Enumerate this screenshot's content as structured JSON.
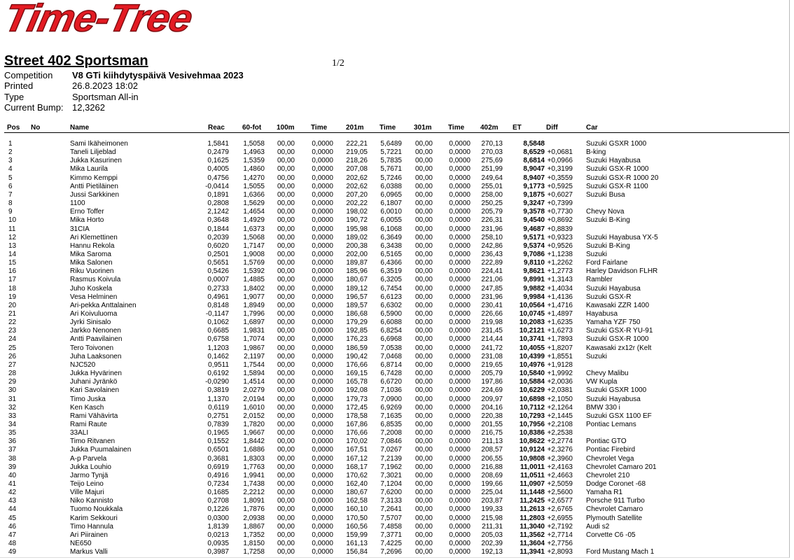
{
  "header": {
    "logo": "Time-Tree",
    "title": "Street 402 Sportsman",
    "page": "1/2",
    "info": [
      {
        "label": "Competition",
        "value": "V8   GTi kiihdytyspäivä Vesivehmaa 2023"
      },
      {
        "label": "Printed",
        "value": "26.8.2023 18:02"
      },
      {
        "label": "Type",
        "value": "Sportsman  All-in"
      },
      {
        "label": "Current Bump:",
        "value": "12,3262"
      }
    ]
  },
  "table": {
    "columns": [
      "Pos",
      "No",
      "Name",
      "Reac",
      "60-fot",
      "100m",
      "Time",
      "201m",
      "Time",
      "301m",
      "Time",
      "402m",
      "ET",
      "Diff",
      "Car"
    ],
    "rows": [
      {
        "pos": 1,
        "name": "Sami Ikäheimonen",
        "reac": "1,5841",
        "f60": "1,5058",
        "m100": "00,00",
        "t100": "0,0000",
        "m201": "222,21",
        "t201": "5,6489",
        "m301": "00,00",
        "t301": "0,0000",
        "m402": "270,13",
        "et": "8,5848",
        "car": "Suzuki GSXR 1000"
      },
      {
        "pos": 2,
        "name": "Taneli Liljeblad",
        "reac": "0,2479",
        "f60": "1,4963",
        "m100": "00,00",
        "t100": "0,0000",
        "m201": "219,05",
        "t201": "5,7221",
        "m301": "00,00",
        "t301": "0,0000",
        "m402": "270,03",
        "et": "8,6529",
        "diff": "+0,0681",
        "car": "B-king"
      },
      {
        "pos": 3,
        "name": "Jukka Kasurinen",
        "reac": "0,1625",
        "f60": "1,5359",
        "m100": "00,00",
        "t100": "0,0000",
        "m201": "218,26",
        "t201": "5,7835",
        "m301": "00,00",
        "t301": "0,0000",
        "m402": "275,69",
        "et": "8,6814",
        "diff": "+0,0966",
        "car": "Suzuki Hayabusa"
      },
      {
        "pos": 4,
        "name": "Mika Laurila",
        "reac": "0,4005",
        "f60": "1,4860",
        "m100": "00,00",
        "t100": "0,0000",
        "m201": "207,08",
        "t201": "5,7671",
        "m301": "00,00",
        "t301": "0,0000",
        "m402": "251,99",
        "et": "8,9047",
        "diff": "+0,3199",
        "car": "Suzuki GSX-R 1000"
      },
      {
        "pos": 5,
        "name": "Kimmo Kemppi",
        "reac": "0,4756",
        "f60": "1,4270",
        "m100": "00,00",
        "t100": "0,0000",
        "m201": "202,62",
        "t201": "5,7246",
        "m301": "00,00",
        "t301": "0,0000",
        "m402": "249,64",
        "et": "8,9407",
        "diff": "+0,3559",
        "car": "Suzuki GSX-R 1000 20"
      },
      {
        "pos": 6,
        "name": "Antti Pietiläinen",
        "reac": "-0,0414",
        "f60": "1,5055",
        "m100": "00,00",
        "t100": "0,0000",
        "m201": "202,62",
        "t201": "6,0388",
        "m301": "00,00",
        "t301": "0,0000",
        "m402": "255,01",
        "et": "9,1773",
        "diff": "+0,5925",
        "car": "Suzuki GSX-R 1100"
      },
      {
        "pos": 7,
        "name": "Jussi Sarkkinen",
        "reac": "0,1891",
        "f60": "1,6366",
        "m100": "00,00",
        "t100": "0,0000",
        "m201": "207,20",
        "t201": "6,0965",
        "m301": "00,00",
        "t301": "0,0000",
        "m402": "258,00",
        "et": "9,1875",
        "diff": "+0,6027",
        "car": "Suzuki Busa"
      },
      {
        "pos": 8,
        "name": "1100",
        "reac": "0,2808",
        "f60": "1,5629",
        "m100": "00,00",
        "t100": "0,0000",
        "m201": "202,22",
        "t201": "6,1807",
        "m301": "00,00",
        "t301": "0,0000",
        "m402": "250,25",
        "et": "9,3247",
        "diff": "+0,7399"
      },
      {
        "pos": 9,
        "name": "Erno Toffer",
        "reac": "2,1242",
        "f60": "1,4654",
        "m100": "00,00",
        "t100": "0,0000",
        "m201": "198,02",
        "t201": "6,0010",
        "m301": "00,00",
        "t301": "0,0000",
        "m402": "205,79",
        "et": "9,3578",
        "diff": "+0,7730",
        "car": "Chevy Nova"
      },
      {
        "pos": 10,
        "name": "Mika Horto",
        "reac": "0,3648",
        "f60": "1,4929",
        "m100": "00,00",
        "t100": "0,0000",
        "m201": "190,72",
        "t201": "6,0055",
        "m301": "00,00",
        "t301": "0,0000",
        "m402": "226,31",
        "et": "9,4540",
        "diff": "+0,8692",
        "car": "Suzuki B-King"
      },
      {
        "pos": 11,
        "name": "31CIA",
        "reac": "0,1844",
        "f60": "1,6373",
        "m100": "00,00",
        "t100": "0,0000",
        "m201": "195,98",
        "t201": "6,1068",
        "m301": "00,00",
        "t301": "0,0000",
        "m402": "231,96",
        "et": "9,4687",
        "diff": "+0,8839"
      },
      {
        "pos": 12,
        "name": "Ari Klemettinen",
        "reac": "0,2039",
        "f60": "1,5068",
        "m100": "00,00",
        "t100": "0,0000",
        "m201": "189,02",
        "t201": "6,3649",
        "m301": "00,00",
        "t301": "0,0000",
        "m402": "258,10",
        "et": "9,5171",
        "diff": "+0,9323",
        "car": "Suzuki Hayabusa YX-5"
      },
      {
        "pos": 13,
        "name": "Hannu Rekola",
        "reac": "0,6020",
        "f60": "1,7147",
        "m100": "00,00",
        "t100": "0,0000",
        "m201": "200,38",
        "t201": "6,3438",
        "m301": "00,00",
        "t301": "0,0000",
        "m402": "242,86",
        "et": "9,5374",
        "diff": "+0,9526",
        "car": "Suzuki B-King"
      },
      {
        "pos": 14,
        "name": "Mika Saroma",
        "reac": "0,2501",
        "f60": "1,9008",
        "m100": "00,00",
        "t100": "0,0000",
        "m201": "202,00",
        "t201": "6,5165",
        "m301": "00,00",
        "t301": "0,0000",
        "m402": "236,43",
        "et": "9,7086",
        "diff": "+1,1238",
        "car": "Suzuki"
      },
      {
        "pos": 15,
        "name": "Mika Salonen",
        "reac": "0,5651",
        "f60": "1,5769",
        "m100": "00,00",
        "t100": "0,0000",
        "m201": "189,87",
        "t201": "6,4366",
        "m301": "00,00",
        "t301": "0,0000",
        "m402": "222,89",
        "et": "9,8110",
        "diff": "+1,2262",
        "car": "Ford Fairlane"
      },
      {
        "pos": 16,
        "name": "Riku Vuorinen",
        "reac": "0,5426",
        "f60": "1,5392",
        "m100": "00,00",
        "t100": "0,0000",
        "m201": "185,96",
        "t201": "6,3519",
        "m301": "00,00",
        "t301": "0,0000",
        "m402": "224,41",
        "et": "9,8621",
        "diff": "+1,2773",
        "car": "Harley Davidson FLHR"
      },
      {
        "pos": 17,
        "name": "Rasmus Koivula",
        "reac": "0,0007",
        "f60": "1,4885",
        "m100": "00,00",
        "t100": "0,0000",
        "m201": "180,67",
        "t201": "6,3205",
        "m301": "00,00",
        "t301": "0,0000",
        "m402": "221,06",
        "et": "9,8991",
        "diff": "+1,3143",
        "car": "Rambler"
      },
      {
        "pos": 18,
        "name": "Juho Koskela",
        "reac": "0,2733",
        "f60": "1,8402",
        "m100": "00,00",
        "t100": "0,0000",
        "m201": "189,12",
        "t201": "6,7454",
        "m301": "00,00",
        "t301": "0,0000",
        "m402": "247,85",
        "et": "9,9882",
        "diff": "+1,4034",
        "car": "Suzuki Hayabusa"
      },
      {
        "pos": 19,
        "name": "Vesa Helminen",
        "reac": "0,4961",
        "f60": "1,9077",
        "m100": "00,00",
        "t100": "0,0000",
        "m201": "196,57",
        "t201": "6,6123",
        "m301": "00,00",
        "t301": "0,0000",
        "m402": "231,96",
        "et": "9,9984",
        "diff": "+1,4136",
        "car": "Suzuki GSX-R"
      },
      {
        "pos": 20,
        "name": "Ari-pekka Anttalainen",
        "reac": "0,8148",
        "f60": "1,8949",
        "m100": "00,00",
        "t100": "0,0000",
        "m201": "189,57",
        "t201": "6,6302",
        "m301": "00,00",
        "t301": "0,0000",
        "m402": "230,41",
        "et": "10,0564",
        "diff": "+1,4716",
        "car": "Kawasaki ZZR 1400"
      },
      {
        "pos": 21,
        "name": "Ari Koivuluoma",
        "reac": "-0,1147",
        "f60": "1,7996",
        "m100": "00,00",
        "t100": "0,0000",
        "m201": "186,68",
        "t201": "6,5900",
        "m301": "00,00",
        "t301": "0,0000",
        "m402": "226,66",
        "et": "10,0745",
        "diff": "+1,4897",
        "car": "Hayabusa"
      },
      {
        "pos": 22,
        "name": "Jyrki Sinisalo",
        "reac": "0,1062",
        "f60": "1,6897",
        "m100": "00,00",
        "t100": "0,0000",
        "m201": "179,29",
        "t201": "6,6088",
        "m301": "00,00",
        "t301": "0,0000",
        "m402": "219,98",
        "et": "10,2083",
        "diff": "+1,6235",
        "car": "Yamaha YZF 750"
      },
      {
        "pos": 23,
        "name": "Jarkko Nenonen",
        "reac": "0,6685",
        "f60": "1,9831",
        "m100": "00,00",
        "t100": "0,0000",
        "m201": "192,85",
        "t201": "6,8254",
        "m301": "00,00",
        "t301": "0,0000",
        "m402": "231,45",
        "et": "10,2121",
        "diff": "+1,6273",
        "car": "Suzuki GSX-R YU-91"
      },
      {
        "pos": 24,
        "name": "Antti Paavilainen",
        "reac": "0,6758",
        "f60": "1,7074",
        "m100": "00,00",
        "t100": "0,0000",
        "m201": "176,23",
        "t201": "6,6968",
        "m301": "00,00",
        "t301": "0,0000",
        "m402": "214,44",
        "et": "10,3741",
        "diff": "+1,7893",
        "car": "Suzuki GSX-R 1000"
      },
      {
        "pos": 25,
        "name": "Tero Toivonen",
        "reac": "1,1203",
        "f60": "1,9867",
        "m100": "00,00",
        "t100": "0,0000",
        "m201": "186,59",
        "t201": "7,0538",
        "m301": "00,00",
        "t301": "0,0000",
        "m402": "241,72",
        "et": "10,4055",
        "diff": "+1,8207",
        "car": "Kawasaki zx12r (Kelt"
      },
      {
        "pos": 26,
        "name": "Juha Laaksonen",
        "reac": "0,1462",
        "f60": "2,1197",
        "m100": "00,00",
        "t100": "0,0000",
        "m201": "190,42",
        "t201": "7,0468",
        "m301": "00,00",
        "t301": "0,0000",
        "m402": "231,08",
        "et": "10,4399",
        "diff": "+1,8551",
        "car": "Suzuki"
      },
      {
        "pos": 27,
        "name": "NJC520",
        "reac": "0,9511",
        "f60": "1,7544",
        "m100": "00,00",
        "t100": "0,0000",
        "m201": "176,66",
        "t201": "6,8714",
        "m301": "00,00",
        "t301": "0,0000",
        "m402": "219,65",
        "et": "10,4976",
        "diff": "+1,9128"
      },
      {
        "pos": 28,
        "name": "Jukka Hyvärinen",
        "reac": "0,6192",
        "f60": "1,5894",
        "m100": "00,00",
        "t100": "0,0000",
        "m201": "169,15",
        "t201": "6,7428",
        "m301": "00,00",
        "t301": "0,0000",
        "m402": "205,79",
        "et": "10,5840",
        "diff": "+1,9992",
        "car": "Chevy Malibu"
      },
      {
        "pos": 29,
        "name": "Juhani Jyränkö",
        "reac": "-0,0290",
        "f60": "1,4514",
        "m100": "00,00",
        "t100": "0,0000",
        "m201": "165,78",
        "t201": "6,6720",
        "m301": "00,00",
        "t301": "0,0000",
        "m402": "197,86",
        "et": "10,5884",
        "diff": "+2,0036",
        "car": "VW Kupla"
      },
      {
        "pos": 30,
        "name": "Kari Savolainen",
        "reac": "0,3819",
        "f60": "2,0279",
        "m100": "00,00",
        "t100": "0,0000",
        "m201": "192,08",
        "t201": "7,1036",
        "m301": "00,00",
        "t301": "0,0000",
        "m402": "224,69",
        "et": "10,6229",
        "diff": "+2,0381",
        "car": "Suzuki GSXR 1000"
      },
      {
        "pos": 31,
        "name": "Timo Juska",
        "reac": "1,1370",
        "f60": "2,0194",
        "m100": "00,00",
        "t100": "0,0000",
        "m201": "179,73",
        "t201": "7,0900",
        "m301": "00,00",
        "t301": "0,0000",
        "m402": "209,97",
        "et": "10,6898",
        "diff": "+2,1050",
        "car": "Suzuki Hayabusa"
      },
      {
        "pos": 32,
        "name": "Ken Kasch",
        "reac": "0,6119",
        "f60": "1,6010",
        "m100": "00,00",
        "t100": "0,0000",
        "m201": "172,45",
        "t201": "6,9269",
        "m301": "00,00",
        "t301": "0,0000",
        "m402": "204,16",
        "et": "10,7112",
        "diff": "+2,1264",
        "car": "BMW 330 i"
      },
      {
        "pos": 33,
        "name": "Rami Vähävirta",
        "reac": "0,2751",
        "f60": "2,0152",
        "m100": "00,00",
        "t100": "0,0000",
        "m201": "178,58",
        "t201": "7,1635",
        "m301": "00,00",
        "t301": "0,0000",
        "m402": "220,38",
        "et": "10,7293",
        "diff": "+2,1445",
        "car": "Suzuki GSX 1100 EF"
      },
      {
        "pos": 34,
        "name": "Rami Raute",
        "reac": "0,7839",
        "f60": "1,7820",
        "m100": "00,00",
        "t100": "0,0000",
        "m201": "167,86",
        "t201": "6,8535",
        "m301": "00,00",
        "t301": "0,0000",
        "m402": "201,55",
        "et": "10,7956",
        "diff": "+2,2108",
        "car": "Pontiac Lemans"
      },
      {
        "pos": 35,
        "name": "33ALI",
        "reac": "0,1965",
        "f60": "1,9667",
        "m100": "00,00",
        "t100": "0,0000",
        "m201": "176,66",
        "t201": "7,2008",
        "m301": "00,00",
        "t301": "0,0000",
        "m402": "216,75",
        "et": "10,8386",
        "diff": "+2,2538"
      },
      {
        "pos": 36,
        "name": "Timo Ritvanen",
        "reac": "0,1552",
        "f60": "1,8442",
        "m100": "00,00",
        "t100": "0,0000",
        "m201": "170,02",
        "t201": "7,0846",
        "m301": "00,00",
        "t301": "0,0000",
        "m402": "211,13",
        "et": "10,8622",
        "diff": "+2,2774",
        "car": "Pontiac GTO"
      },
      {
        "pos": 37,
        "name": "Jukka Puumalainen",
        "reac": "0,6501",
        "f60": "1,6886",
        "m100": "00,00",
        "t100": "0,0000",
        "m201": "167,51",
        "t201": "7,0267",
        "m301": "00,00",
        "t301": "0,0000",
        "m402": "208,57",
        "et": "10,9124",
        "diff": "+2,3276",
        "car": "Pontiac Firebird"
      },
      {
        "pos": 38,
        "name": "A-p Parvela",
        "reac": "0,3681",
        "f60": "1,8303",
        "m100": "00,00",
        "t100": "0,0000",
        "m201": "167,12",
        "t201": "7,2139",
        "m301": "00,00",
        "t301": "0,0000",
        "m402": "206,55",
        "et": "10,9808",
        "diff": "+2,3960",
        "car": "Chevrolet Vega"
      },
      {
        "pos": 39,
        "name": "Jukka Louhio",
        "reac": "0,6919",
        "f60": "1,7763",
        "m100": "00,00",
        "t100": "0,0000",
        "m201": "168,17",
        "t201": "7,1962",
        "m301": "00,00",
        "t301": "0,0000",
        "m402": "216,88",
        "et": "11,0011",
        "diff": "+2,4163",
        "car": "Chevrolet Camaro 201"
      },
      {
        "pos": 40,
        "name": "Jarmo Tynjä",
        "reac": "0,4916",
        "f60": "1,9941",
        "m100": "00,00",
        "t100": "0,0000",
        "m201": "170,62",
        "t201": "7,3021",
        "m301": "00,00",
        "t301": "0,0000",
        "m402": "208,69",
        "et": "11,0511",
        "diff": "+2,4663",
        "car": "Chevrolet 210"
      },
      {
        "pos": 41,
        "name": "Teijo Leino",
        "reac": "0,7234",
        "f60": "1,7438",
        "m100": "00,00",
        "t100": "0,0000",
        "m201": "162,40",
        "t201": "7,1204",
        "m301": "00,00",
        "t301": "0,0000",
        "m402": "199,66",
        "et": "11,0907",
        "diff": "+2,5059",
        "car": "Dodge Coronet -68"
      },
      {
        "pos": 42,
        "name": "Ville Majuri",
        "reac": "0,1685",
        "f60": "2,2212",
        "m100": "00,00",
        "t100": "0,0000",
        "m201": "180,67",
        "t201": "7,6200",
        "m301": "00,00",
        "t301": "0,0000",
        "m402": "225,04",
        "et": "11,1448",
        "diff": "+2,5600",
        "car": "Yamaha R1"
      },
      {
        "pos": 43,
        "name": "Niko Kannisto",
        "reac": "0,2708",
        "f60": "1,8091",
        "m100": "00,00",
        "t100": "0,0000",
        "m201": "162,58",
        "t201": "7,3133",
        "m301": "00,00",
        "t301": "0,0000",
        "m402": "203,87",
        "et": "11,2425",
        "diff": "+2,6577",
        "car": "Porsche 911 Turbo"
      },
      {
        "pos": 44,
        "name": "Tuomo Noukkala",
        "reac": "0,1226",
        "f60": "1,7876",
        "m100": "00,00",
        "t100": "0,0000",
        "m201": "160,10",
        "t201": "7,2641",
        "m301": "00,00",
        "t301": "0,0000",
        "m402": "199,33",
        "et": "11,2613",
        "diff": "+2,6765",
        "car": "Chevrolet Camaro"
      },
      {
        "pos": 45,
        "name": "Karim Sekkouri",
        "reac": "0,0300",
        "f60": "2,0938",
        "m100": "00,00",
        "t100": "0,0000",
        "m201": "170,50",
        "t201": "7,5707",
        "m301": "00,00",
        "t301": "0,0000",
        "m402": "215,98",
        "et": "11,2803",
        "diff": "+2,6955",
        "car": "Plymouth Satellite"
      },
      {
        "pos": 46,
        "name": "Timo Hannula",
        "reac": "1,8139",
        "f60": "1,8867",
        "m100": "00,00",
        "t100": "0,0000",
        "m201": "160,56",
        "t201": "7,4858",
        "m301": "00,00",
        "t301": "0,0000",
        "m402": "211,31",
        "et": "11,3040",
        "diff": "+2,7192",
        "car": "Audi s2"
      },
      {
        "pos": 47,
        "name": "Ari Piirainen",
        "reac": "0,0213",
        "f60": "1,7352",
        "m100": "00,00",
        "t100": "0,0000",
        "m201": "159,99",
        "t201": "7,3771",
        "m301": "00,00",
        "t301": "0,0000",
        "m402": "205,03",
        "et": "11,3562",
        "diff": "+2,7714",
        "car": "Corvette C6 -05"
      },
      {
        "pos": 48,
        "name": "NE650",
        "reac": "0,0935",
        "f60": "1,8150",
        "m100": "00,00",
        "t100": "0,0000",
        "m201": "161,13",
        "t201": "7,4225",
        "m301": "00,00",
        "t301": "0,0000",
        "m402": "202,39",
        "et": "11,3604",
        "diff": "+2,7756"
      },
      {
        "pos": 49,
        "name": "Markus Valli",
        "reac": "0,3987",
        "f60": "1,7258",
        "m100": "00,00",
        "t100": "0,0000",
        "m201": "156,84",
        "t201": "7,2696",
        "m301": "00,00",
        "t301": "0,0000",
        "m402": "192,13",
        "et": "11,3941",
        "diff": "+2,8093",
        "car": "Ford Mustang Mach 1"
      }
    ]
  }
}
